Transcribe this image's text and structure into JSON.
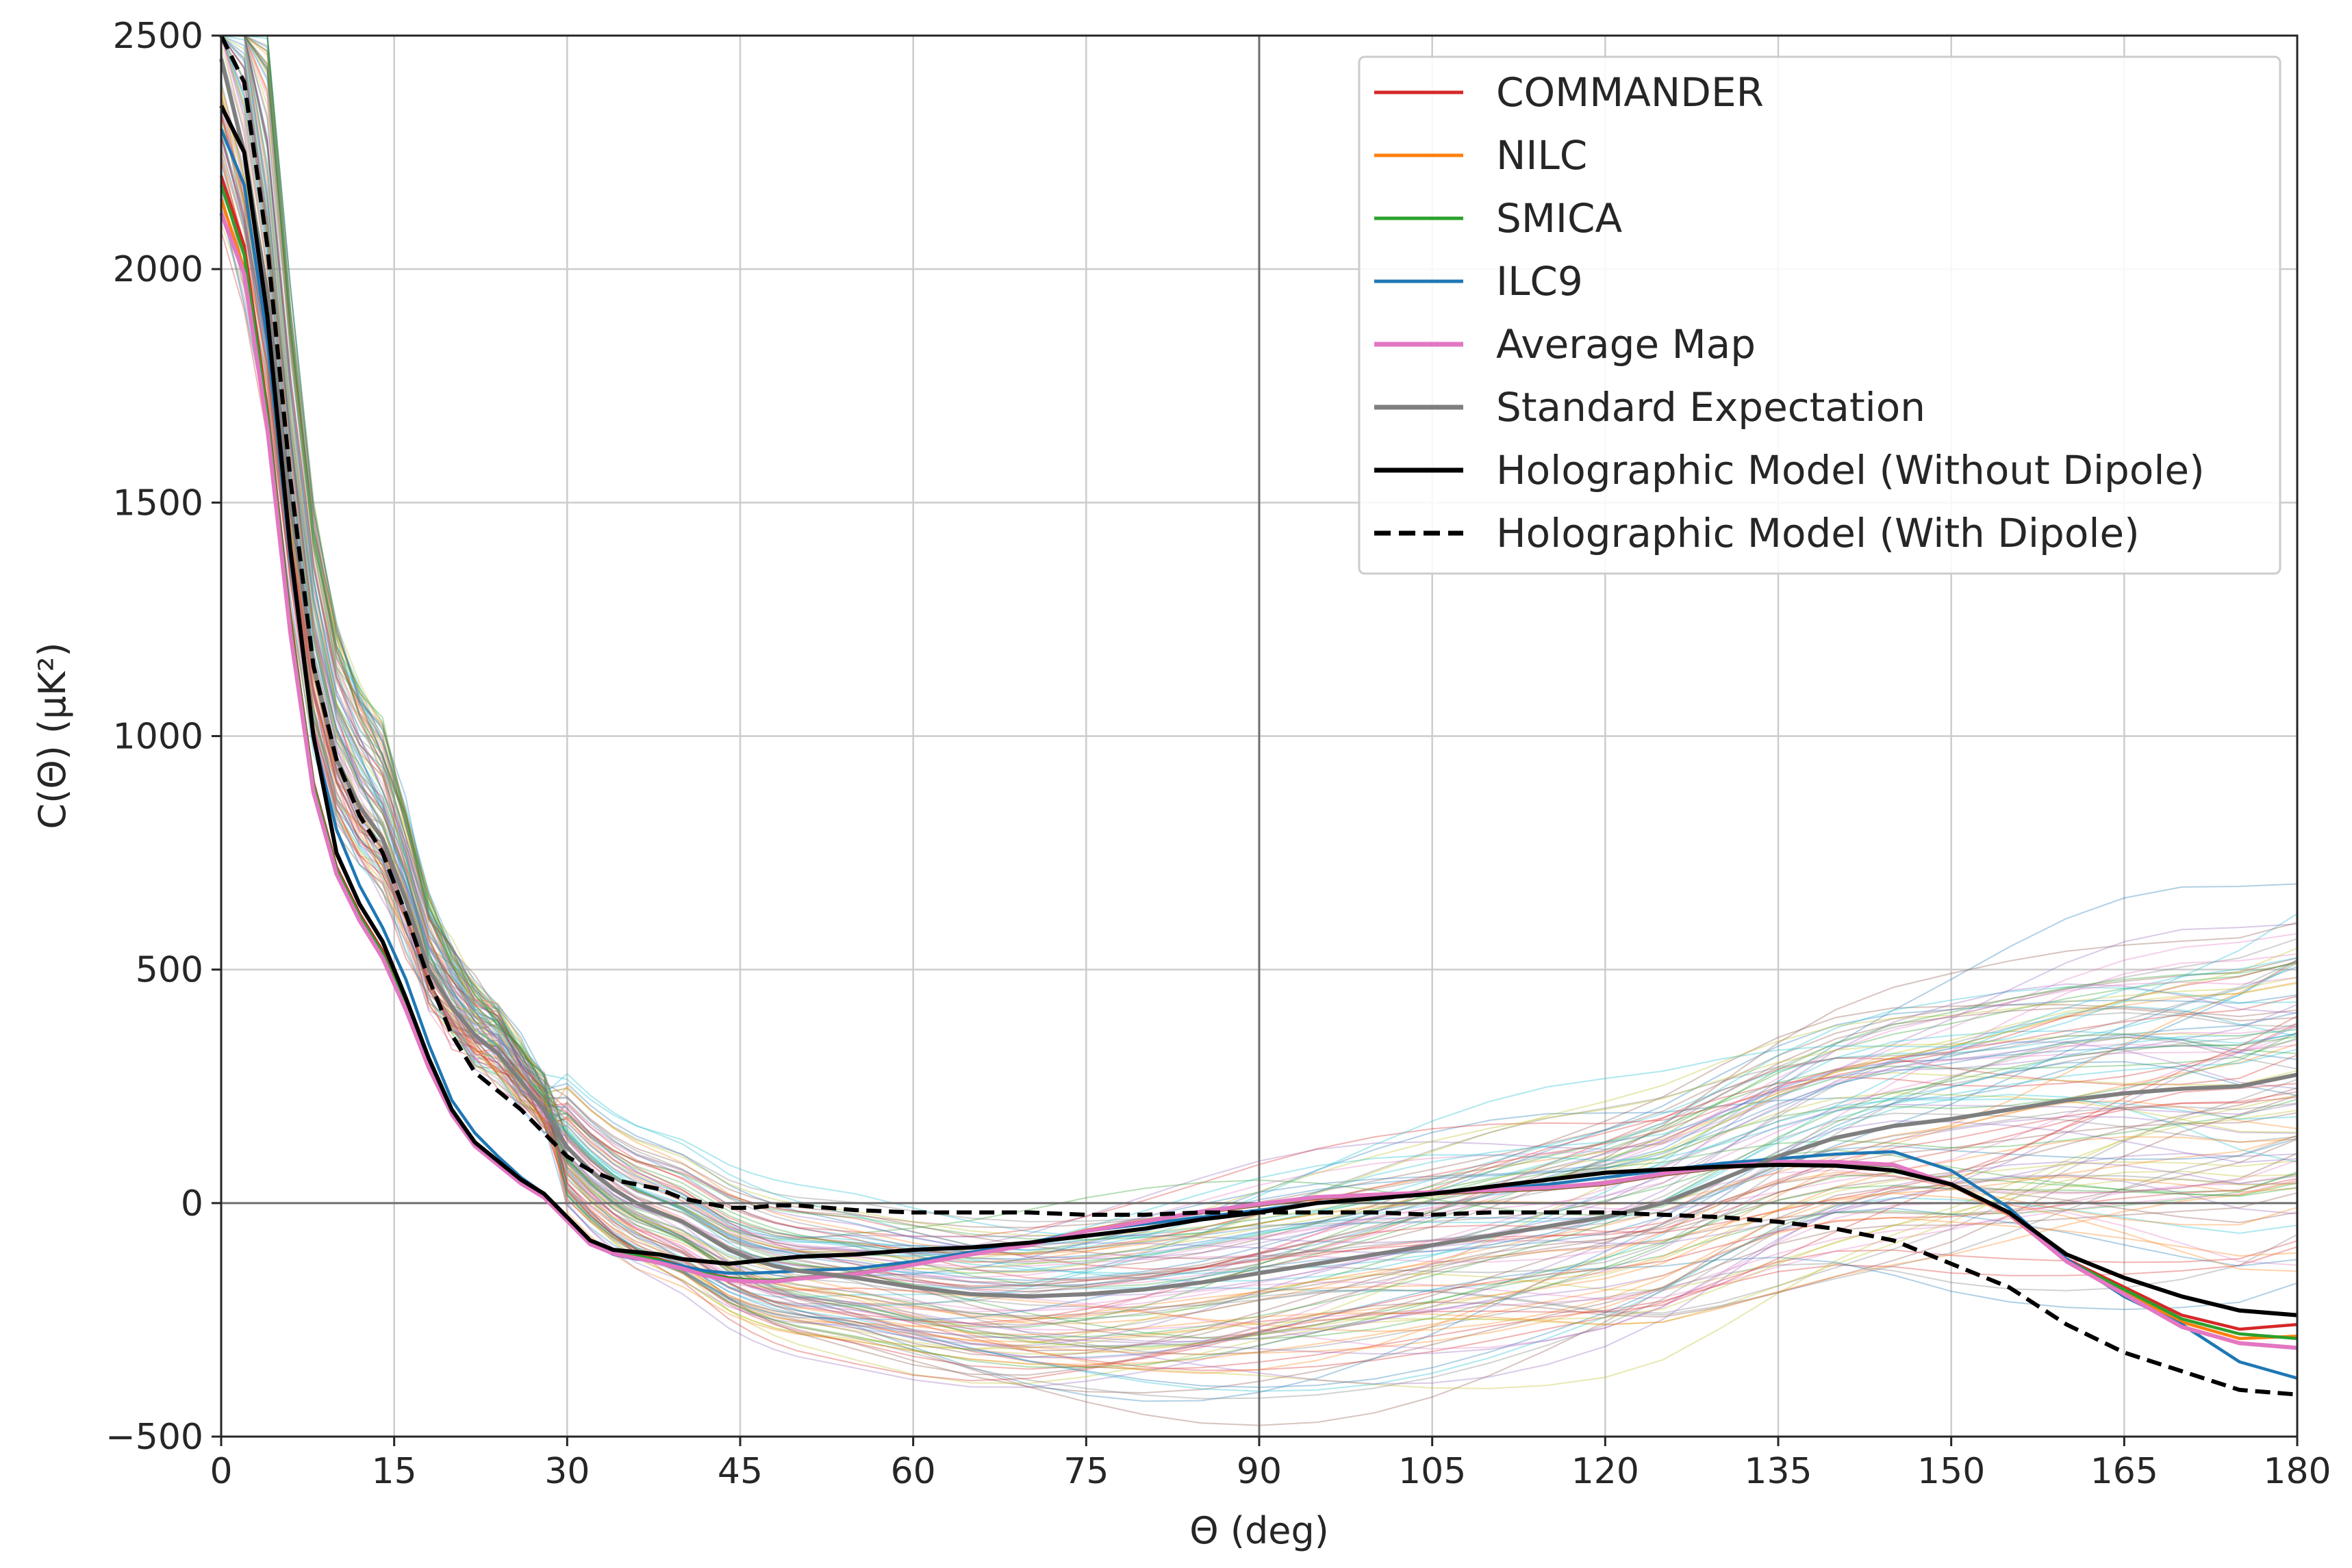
{
  "chart_data": {
    "type": "line",
    "title": "",
    "xlabel": "Θ (deg)",
    "ylabel": "C(Θ) (μK²)",
    "xlim": [
      0,
      180
    ],
    "ylim": [
      -500,
      2500
    ],
    "xticks": [
      0,
      15,
      30,
      45,
      60,
      75,
      90,
      105,
      120,
      135,
      150,
      165,
      180
    ],
    "yticks": [
      -500,
      0,
      500,
      1000,
      1500,
      2000,
      2500
    ],
    "ytick_labels": [
      "−500",
      "0",
      "500",
      "1000",
      "1500",
      "2000",
      "2500"
    ],
    "grid": true,
    "reference_lines": {
      "x": 90,
      "y": 0
    },
    "legend_position": "top-right",
    "x": [
      0,
      2,
      4,
      6,
      8,
      10,
      12,
      14,
      16,
      18,
      20,
      22,
      24,
      26,
      28,
      30,
      32,
      34,
      36,
      38,
      40,
      42,
      44,
      46,
      48,
      50,
      55,
      60,
      65,
      70,
      75,
      80,
      85,
      90,
      95,
      100,
      105,
      110,
      115,
      120,
      125,
      130,
      135,
      140,
      145,
      150,
      155,
      160,
      165,
      170,
      175,
      180
    ],
    "series": [
      {
        "name": "COMMANDER",
        "color": "#d62728",
        "style": "solid",
        "values": [
          2200,
          2050,
          1700,
          1250,
          900,
          720,
          620,
          540,
          430,
          300,
          200,
          130,
          90,
          50,
          20,
          -30,
          -80,
          -100,
          -110,
          -120,
          -135,
          -150,
          -160,
          -165,
          -165,
          -160,
          -150,
          -130,
          -110,
          -90,
          -60,
          -40,
          -20,
          -5,
          10,
          15,
          20,
          25,
          30,
          40,
          60,
          75,
          85,
          85,
          80,
          40,
          -20,
          -120,
          -180,
          -240,
          -270,
          -260
        ]
      },
      {
        "name": "NILC",
        "color": "#ff7f0e",
        "style": "solid",
        "values": [
          2150,
          2000,
          1680,
          1230,
          890,
          710,
          610,
          530,
          420,
          295,
          195,
          125,
          85,
          45,
          15,
          -35,
          -85,
          -105,
          -115,
          -125,
          -138,
          -152,
          -162,
          -166,
          -166,
          -160,
          -150,
          -130,
          -108,
          -88,
          -58,
          -38,
          -18,
          -3,
          12,
          17,
          22,
          27,
          32,
          42,
          62,
          77,
          87,
          87,
          80,
          38,
          -25,
          -125,
          -190,
          -255,
          -290,
          -285
        ]
      },
      {
        "name": "SMICA",
        "color": "#2ca02c",
        "style": "solid",
        "values": [
          2180,
          2030,
          1690,
          1240,
          895,
          715,
          615,
          535,
          425,
          298,
          198,
          128,
          88,
          48,
          18,
          -32,
          -82,
          -102,
          -112,
          -122,
          -136,
          -151,
          -161,
          -165,
          -165,
          -160,
          -150,
          -130,
          -109,
          -89,
          -59,
          -39,
          -19,
          -4,
          11,
          16,
          21,
          26,
          31,
          41,
          61,
          76,
          86,
          86,
          80,
          39,
          -22,
          -122,
          -185,
          -248,
          -280,
          -290
        ]
      },
      {
        "name": "ILC9",
        "color": "#1f77b4",
        "style": "solid",
        "values": [
          2300,
          2180,
          1850,
          1380,
          1000,
          800,
          680,
          590,
          480,
          340,
          220,
          150,
          100,
          55,
          20,
          -30,
          -85,
          -110,
          -120,
          -125,
          -135,
          -145,
          -150,
          -150,
          -148,
          -145,
          -140,
          -125,
          -105,
          -85,
          -60,
          -45,
          -30,
          -15,
          0,
          10,
          20,
          30,
          40,
          55,
          70,
          85,
          95,
          105,
          110,
          70,
          -10,
          -120,
          -200,
          -260,
          -340,
          -375
        ]
      },
      {
        "name": "Average Map",
        "color": "#e377c2",
        "style": "solid",
        "width": 2,
        "values": [
          2120,
          1990,
          1660,
          1220,
          880,
          705,
          605,
          525,
          415,
          290,
          190,
          122,
          82,
          42,
          12,
          -38,
          -88,
          -108,
          -118,
          -128,
          -140,
          -155,
          -165,
          -168,
          -168,
          -162,
          -152,
          -132,
          -110,
          -90,
          -60,
          -40,
          -18,
          -2,
          13,
          18,
          23,
          28,
          33,
          43,
          63,
          78,
          88,
          88,
          82,
          40,
          -22,
          -125,
          -195,
          -265,
          -300,
          -310
        ]
      },
      {
        "name": "Standard Expectation",
        "color": "#7f7f7f",
        "style": "solid",
        "width": 2,
        "values": [
          2450,
          2250,
          1950,
          1500,
          1150,
          950,
          850,
          780,
          650,
          500,
          420,
          360,
          320,
          260,
          200,
          120,
          70,
          30,
          0,
          -20,
          -40,
          -70,
          -100,
          -120,
          -135,
          -145,
          -160,
          -180,
          -195,
          -200,
          -195,
          -185,
          -170,
          -150,
          -130,
          -110,
          -90,
          -70,
          -50,
          -30,
          0,
          50,
          100,
          140,
          165,
          180,
          200,
          220,
          235,
          245,
          250,
          275
        ]
      },
      {
        "name": "Holographic Model (Without Dipole)",
        "color": "#000000",
        "style": "solid",
        "width": 2,
        "values": [
          2350,
          2250,
          1900,
          1400,
          1000,
          750,
          640,
          560,
          440,
          310,
          200,
          130,
          90,
          50,
          20,
          -30,
          -80,
          -100,
          -105,
          -110,
          -120,
          -125,
          -130,
          -125,
          -120,
          -115,
          -110,
          -100,
          -95,
          -85,
          -70,
          -55,
          -35,
          -20,
          0,
          10,
          20,
          35,
          50,
          65,
          72,
          78,
          82,
          80,
          70,
          40,
          -20,
          -110,
          -160,
          -200,
          -230,
          -240
        ]
      },
      {
        "name": "Holographic Model (With Dipole)",
        "color": "#000000",
        "style": "dashed",
        "width": 2,
        "values": [
          2500,
          2400,
          2050,
          1550,
          1150,
          950,
          830,
          750,
          620,
          480,
          360,
          280,
          240,
          200,
          150,
          100,
          70,
          50,
          40,
          30,
          10,
          0,
          -10,
          -10,
          -5,
          -5,
          -15,
          -20,
          -20,
          -20,
          -25,
          -25,
          -20,
          -20,
          -20,
          -20,
          -25,
          -20,
          -20,
          -20,
          -25,
          -30,
          -40,
          -55,
          -80,
          -130,
          -180,
          -260,
          -320,
          -360,
          -400,
          -410
        ]
      }
    ]
  }
}
